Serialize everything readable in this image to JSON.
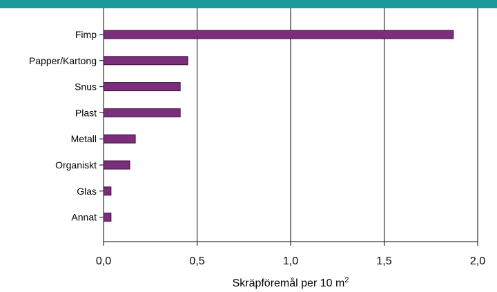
{
  "colors": {
    "header_band": "#1a9a9a",
    "bar_fill": "#7b2f7b",
    "bar_stroke": "#3a0e3a",
    "grid": "#000000"
  },
  "chart_data": {
    "type": "bar",
    "orientation": "horizontal",
    "categories": [
      "Fimp",
      "Papper/Kartong",
      "Snus",
      "Plast",
      "Metall",
      "Organiskt",
      "Glas",
      "Annat"
    ],
    "values": [
      1.87,
      0.45,
      0.41,
      0.41,
      0.17,
      0.14,
      0.04,
      0.04
    ],
    "xlim": [
      0,
      2.0
    ],
    "xticks": [
      "0,0",
      "0,5",
      "1,0",
      "1,5",
      "2,0"
    ],
    "xtick_values": [
      0,
      0.5,
      1.0,
      1.5,
      2.0
    ],
    "xlabel": "Skräpföremål per 10 m",
    "xlabel_superscript": "2",
    "ylabel": "",
    "title": "",
    "grid": "vertical",
    "legend": "none"
  }
}
